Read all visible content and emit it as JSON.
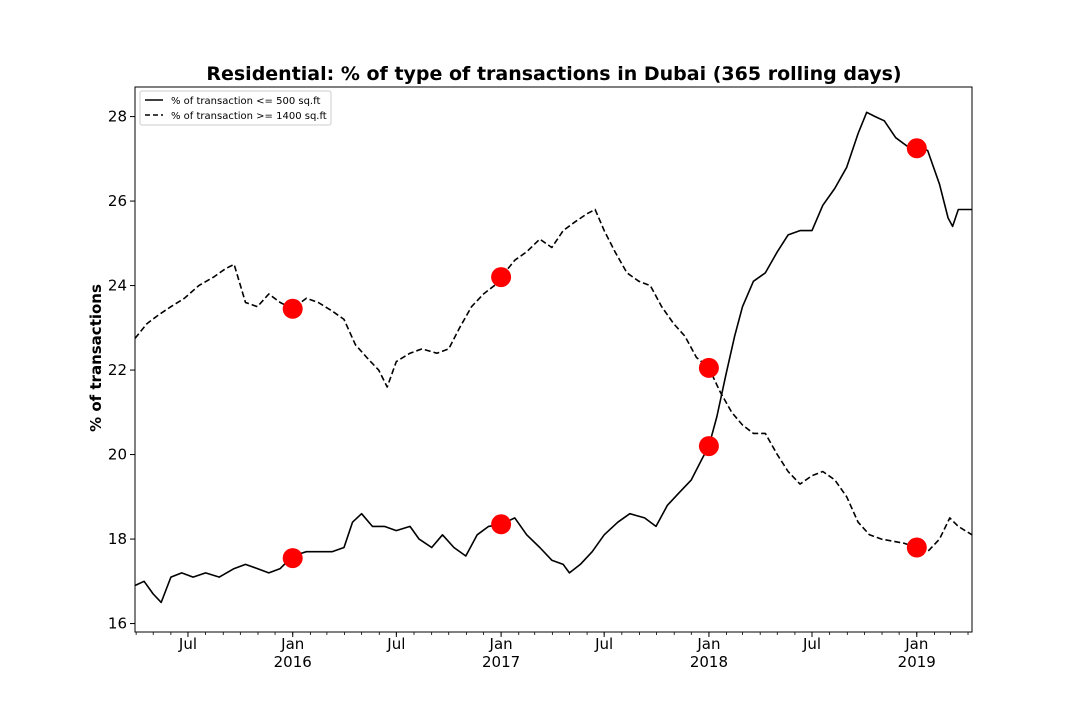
{
  "chart_data": {
    "type": "line",
    "title": "Residential: % of type of transactions in Dubai (365 rolling days)",
    "xlabel": "",
    "ylabel": "% of transactions",
    "x_range": [
      "2015-03-30",
      "2019-04-08"
    ],
    "ylim": [
      15.8,
      28.7
    ],
    "yticks": [
      16,
      18,
      20,
      22,
      24,
      26,
      28
    ],
    "xticks": [
      {
        "date": "2015-07-01",
        "label": "Jul",
        "year": ""
      },
      {
        "date": "2016-01-01",
        "label": "Jan",
        "year": "2016"
      },
      {
        "date": "2016-07-01",
        "label": "Jul",
        "year": ""
      },
      {
        "date": "2017-01-01",
        "label": "Jan",
        "year": "2017"
      },
      {
        "date": "2017-07-01",
        "label": "Jul",
        "year": ""
      },
      {
        "date": "2018-01-01",
        "label": "Jan",
        "year": "2018"
      },
      {
        "date": "2018-07-01",
        "label": "Jul",
        "year": ""
      },
      {
        "date": "2019-01-01",
        "label": "Jan",
        "year": "2019"
      }
    ],
    "grid": false,
    "legend_position": "top-left",
    "series": [
      {
        "name": "% of transaction <= 500 sq.ft",
        "style": "solid",
        "color": "#000000",
        "points": [
          [
            "2015-03-30",
            16.9
          ],
          [
            "2015-04-15",
            17.0
          ],
          [
            "2015-05-01",
            16.7
          ],
          [
            "2015-05-15",
            16.5
          ],
          [
            "2015-06-01",
            17.1
          ],
          [
            "2015-06-20",
            17.2
          ],
          [
            "2015-07-10",
            17.1
          ],
          [
            "2015-08-01",
            17.2
          ],
          [
            "2015-08-25",
            17.1
          ],
          [
            "2015-09-20",
            17.3
          ],
          [
            "2015-10-10",
            17.4
          ],
          [
            "2015-10-31",
            17.3
          ],
          [
            "2015-11-20",
            17.2
          ],
          [
            "2015-12-10",
            17.3
          ],
          [
            "2016-01-01",
            17.6
          ],
          [
            "2016-01-25",
            17.7
          ],
          [
            "2016-02-15",
            17.7
          ],
          [
            "2016-03-10",
            17.7
          ],
          [
            "2016-03-31",
            17.8
          ],
          [
            "2016-04-15",
            18.4
          ],
          [
            "2016-05-01",
            18.6
          ],
          [
            "2016-05-20",
            18.3
          ],
          [
            "2016-06-10",
            18.3
          ],
          [
            "2016-07-01",
            18.2
          ],
          [
            "2016-07-25",
            18.3
          ],
          [
            "2016-08-10",
            18.0
          ],
          [
            "2016-09-01",
            17.8
          ],
          [
            "2016-09-20",
            18.1
          ],
          [
            "2016-10-10",
            17.8
          ],
          [
            "2016-10-31",
            17.6
          ],
          [
            "2016-11-20",
            18.1
          ],
          [
            "2016-12-10",
            18.3
          ],
          [
            "2017-01-01",
            18.35
          ],
          [
            "2017-01-25",
            18.5
          ],
          [
            "2017-02-15",
            18.1
          ],
          [
            "2017-03-10",
            17.8
          ],
          [
            "2017-03-31",
            17.5
          ],
          [
            "2017-04-20",
            17.4
          ],
          [
            "2017-05-01",
            17.2
          ],
          [
            "2017-05-20",
            17.4
          ],
          [
            "2017-06-10",
            17.7
          ],
          [
            "2017-07-01",
            18.1
          ],
          [
            "2017-07-25",
            18.4
          ],
          [
            "2017-08-15",
            18.6
          ],
          [
            "2017-09-10",
            18.5
          ],
          [
            "2017-09-30",
            18.3
          ],
          [
            "2017-10-20",
            18.8
          ],
          [
            "2017-11-10",
            19.1
          ],
          [
            "2017-12-01",
            19.4
          ],
          [
            "2017-12-20",
            19.9
          ],
          [
            "2018-01-01",
            20.2
          ],
          [
            "2018-01-15",
            20.9
          ],
          [
            "2018-01-31",
            21.9
          ],
          [
            "2018-02-15",
            22.8
          ],
          [
            "2018-03-01",
            23.5
          ],
          [
            "2018-03-20",
            24.1
          ],
          [
            "2018-04-10",
            24.3
          ],
          [
            "2018-05-01",
            24.8
          ],
          [
            "2018-05-20",
            25.2
          ],
          [
            "2018-06-10",
            25.3
          ],
          [
            "2018-07-01",
            25.3
          ],
          [
            "2018-07-20",
            25.9
          ],
          [
            "2018-08-10",
            26.3
          ],
          [
            "2018-08-31",
            26.8
          ],
          [
            "2018-09-20",
            27.6
          ],
          [
            "2018-10-05",
            28.1
          ],
          [
            "2018-10-20",
            28.0
          ],
          [
            "2018-11-05",
            27.9
          ],
          [
            "2018-11-25",
            27.5
          ],
          [
            "2018-12-15",
            27.3
          ],
          [
            "2019-01-01",
            27.25
          ],
          [
            "2019-01-20",
            27.2
          ],
          [
            "2019-02-10",
            26.4
          ],
          [
            "2019-02-25",
            25.6
          ],
          [
            "2019-03-05",
            25.4
          ],
          [
            "2019-03-15",
            25.8
          ],
          [
            "2019-04-08",
            25.8
          ]
        ]
      },
      {
        "name": "% of transaction >= 1400 sq.ft",
        "style": "dashed",
        "color": "#000000",
        "points": [
          [
            "2015-03-30",
            22.75
          ],
          [
            "2015-04-20",
            23.1
          ],
          [
            "2015-05-10",
            23.3
          ],
          [
            "2015-06-01",
            23.5
          ],
          [
            "2015-06-25",
            23.7
          ],
          [
            "2015-07-20",
            24.0
          ],
          [
            "2015-08-15",
            24.2
          ],
          [
            "2015-09-05",
            24.4
          ],
          [
            "2015-09-20",
            24.5
          ],
          [
            "2015-10-10",
            23.6
          ],
          [
            "2015-10-31",
            23.5
          ],
          [
            "2015-11-20",
            23.8
          ],
          [
            "2015-12-10",
            23.6
          ],
          [
            "2016-01-01",
            23.45
          ],
          [
            "2016-01-25",
            23.7
          ],
          [
            "2016-02-15",
            23.6
          ],
          [
            "2016-03-10",
            23.4
          ],
          [
            "2016-03-31",
            23.2
          ],
          [
            "2016-04-20",
            22.6
          ],
          [
            "2016-05-10",
            22.3
          ],
          [
            "2016-05-31",
            22.0
          ],
          [
            "2016-06-15",
            21.6
          ],
          [
            "2016-07-01",
            22.2
          ],
          [
            "2016-07-25",
            22.4
          ],
          [
            "2016-08-15",
            22.5
          ],
          [
            "2016-09-10",
            22.4
          ],
          [
            "2016-10-01",
            22.5
          ],
          [
            "2016-10-20",
            23.0
          ],
          [
            "2016-11-10",
            23.5
          ],
          [
            "2016-12-01",
            23.8
          ],
          [
            "2016-12-20",
            24.0
          ],
          [
            "2017-01-01",
            24.2
          ],
          [
            "2017-01-25",
            24.6
          ],
          [
            "2017-02-15",
            24.8
          ],
          [
            "2017-03-10",
            25.1
          ],
          [
            "2017-03-31",
            24.9
          ],
          [
            "2017-04-20",
            25.3
          ],
          [
            "2017-05-10",
            25.5
          ],
          [
            "2017-06-01",
            25.7
          ],
          [
            "2017-06-15",
            25.8
          ],
          [
            "2017-07-01",
            25.3
          ],
          [
            "2017-07-20",
            24.8
          ],
          [
            "2017-08-10",
            24.3
          ],
          [
            "2017-08-31",
            24.1
          ],
          [
            "2017-09-20",
            24.0
          ],
          [
            "2017-10-10",
            23.5
          ],
          [
            "2017-10-31",
            23.1
          ],
          [
            "2017-11-20",
            22.8
          ],
          [
            "2017-12-10",
            22.3
          ],
          [
            "2018-01-01",
            22.05
          ],
          [
            "2018-01-20",
            21.5
          ],
          [
            "2018-02-10",
            21.0
          ],
          [
            "2018-03-01",
            20.7
          ],
          [
            "2018-03-20",
            20.5
          ],
          [
            "2018-04-10",
            20.5
          ],
          [
            "2018-05-01",
            20.0
          ],
          [
            "2018-05-20",
            19.6
          ],
          [
            "2018-06-10",
            19.3
          ],
          [
            "2018-07-01",
            19.5
          ],
          [
            "2018-07-20",
            19.6
          ],
          [
            "2018-08-10",
            19.4
          ],
          [
            "2018-08-31",
            19.0
          ],
          [
            "2018-09-20",
            18.4
          ],
          [
            "2018-10-10",
            18.1
          ],
          [
            "2018-10-31",
            18.0
          ],
          [
            "2018-11-20",
            17.95
          ],
          [
            "2018-12-10",
            17.9
          ],
          [
            "2019-01-01",
            17.8
          ],
          [
            "2019-01-20",
            17.7
          ],
          [
            "2019-02-10",
            18.0
          ],
          [
            "2019-02-28",
            18.5
          ],
          [
            "2019-03-15",
            18.3
          ],
          [
            "2019-04-08",
            18.1
          ]
        ]
      }
    ],
    "markers": {
      "color": "#ff0000",
      "points": [
        [
          "2016-01-01",
          17.55
        ],
        [
          "2016-01-01",
          23.45
        ],
        [
          "2017-01-01",
          18.35
        ],
        [
          "2017-01-01",
          24.2
        ],
        [
          "2018-01-01",
          20.2
        ],
        [
          "2018-01-01",
          22.05
        ],
        [
          "2019-01-01",
          17.8
        ],
        [
          "2019-01-01",
          27.25
        ]
      ]
    }
  }
}
